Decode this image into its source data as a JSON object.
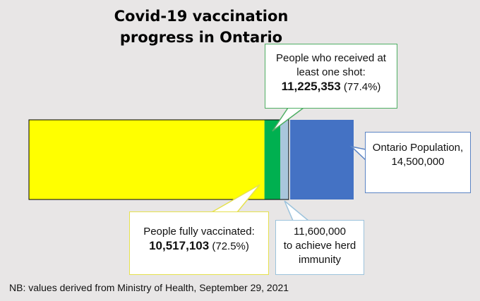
{
  "chart_data": {
    "type": "bar",
    "orientation": "horizontal",
    "stacked": true,
    "title": "Covid-19 vaccination progress in Ontario",
    "total": 14500000,
    "segments": [
      {
        "name": "People fully vaccinated",
        "value": 10517103,
        "percent": "72.5%",
        "color": "#ffff00"
      },
      {
        "name": "People who received at least one shot",
        "value": 11225353,
        "percent": "77.4%",
        "color": "#00b050"
      },
      {
        "name": "to achieve herd immunity",
        "value": 11600000,
        "color": "#a9c6dc"
      },
      {
        "name": "Ontario Population",
        "value": 14500000,
        "color": "#4472c4"
      }
    ]
  },
  "title": "Covid-19 vaccination progress in Ontario",
  "callouts": {
    "one_shot": {
      "label": "People who received at least one shot:",
      "value": "11,225,353",
      "pct": "(77.4%)"
    },
    "population": {
      "label": "Ontario Population,",
      "value": "14,500,000"
    },
    "fully": {
      "label": "People fully vaccinated:",
      "value": "10,517,103",
      "pct": "(72.5%)"
    },
    "herd": {
      "value": "11,600,000",
      "label": "to achieve herd immunity"
    }
  },
  "footnote": "NB: values derived from Ministry of Health, September 29, 2021",
  "colors": {
    "fully": "#ffff00",
    "one_shot": "#00b050",
    "herd": "#a9c6dc",
    "population": "#4472c4"
  }
}
